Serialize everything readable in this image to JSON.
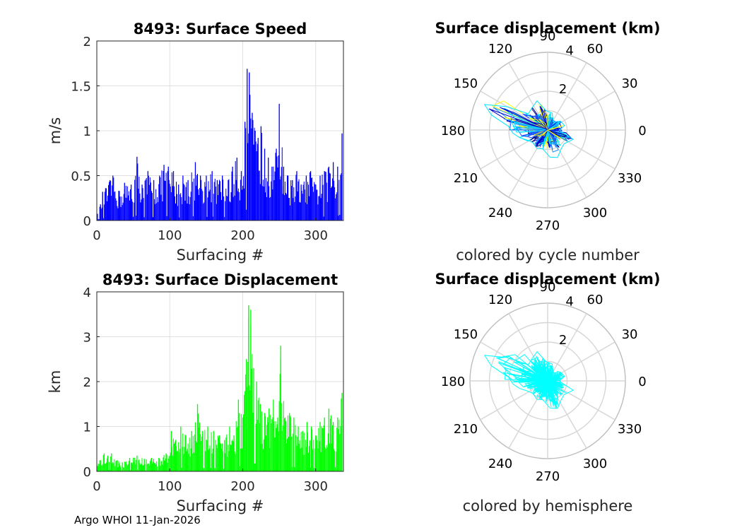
{
  "footer": "Argo WHOI 11-Jan-2026",
  "chart_data": [
    {
      "id": "speed",
      "type": "bar",
      "title": "8493: Surface Speed",
      "xlabel": "Surfacing #",
      "ylabel": "m/s",
      "xlim": [
        0,
        338
      ],
      "ylim": [
        0,
        2
      ],
      "xticks": [
        0,
        100,
        200,
        300
      ],
      "yticks": [
        0,
        0.5,
        1,
        1.5,
        2
      ],
      "ytick_labels": [
        "0",
        "0.5",
        "1",
        "1.5",
        "2"
      ],
      "grid": true,
      "color": "#0000ff",
      "peaks": [
        [
          5,
          0.18
        ],
        [
          8,
          0.32
        ],
        [
          12,
          0.36
        ],
        [
          18,
          0.45
        ],
        [
          22,
          0.5
        ],
        [
          30,
          0.33
        ],
        [
          38,
          0.42
        ],
        [
          47,
          0.4
        ],
        [
          55,
          0.71
        ],
        [
          62,
          0.4
        ],
        [
          70,
          0.55
        ],
        [
          78,
          0.45
        ],
        [
          86,
          0.5
        ],
        [
          92,
          0.62
        ],
        [
          98,
          0.6
        ],
        [
          105,
          0.55
        ],
        [
          112,
          0.4
        ],
        [
          118,
          0.5
        ],
        [
          125,
          0.45
        ],
        [
          135,
          0.65
        ],
        [
          142,
          0.5
        ],
        [
          150,
          0.5
        ],
        [
          158,
          0.55
        ],
        [
          165,
          0.45
        ],
        [
          172,
          0.5
        ],
        [
          180,
          0.45
        ],
        [
          186,
          0.6
        ],
        [
          192,
          0.7
        ],
        [
          198,
          0.55
        ],
        [
          203,
          1.1
        ],
        [
          206,
          1.69
        ],
        [
          209,
          1.65
        ],
        [
          213,
          1.2
        ],
        [
          217,
          1.0
        ],
        [
          221,
          0.92
        ],
        [
          225,
          1.05
        ],
        [
          230,
          0.8
        ],
        [
          235,
          0.7
        ],
        [
          240,
          0.6
        ],
        [
          246,
          0.8
        ],
        [
          250,
          1.3
        ],
        [
          256,
          0.6
        ],
        [
          262,
          0.5
        ],
        [
          268,
          0.45
        ],
        [
          274,
          0.55
        ],
        [
          280,
          0.4
        ],
        [
          287,
          0.5
        ],
        [
          293,
          0.55
        ],
        [
          300,
          0.4
        ],
        [
          306,
          0.5
        ],
        [
          312,
          0.55
        ],
        [
          318,
          0.6
        ],
        [
          324,
          0.65
        ],
        [
          330,
          0.6
        ],
        [
          336,
          0.97
        ]
      ]
    },
    {
      "id": "displacement",
      "type": "bar",
      "title": "8493: Surface Displacement",
      "xlabel": "Surfacing #",
      "ylabel": "km",
      "xlim": [
        0,
        338
      ],
      "ylim": [
        0,
        4
      ],
      "xticks": [
        0,
        100,
        200,
        300
      ],
      "yticks": [
        0,
        1,
        2,
        3,
        4
      ],
      "ytick_labels": [
        "0",
        "1",
        "2",
        "3",
        "4"
      ],
      "grid": true,
      "color": "#00ff00",
      "peaks": [
        [
          5,
          0.25
        ],
        [
          10,
          0.4
        ],
        [
          15,
          0.35
        ],
        [
          20,
          0.4
        ],
        [
          28,
          0.25
        ],
        [
          35,
          0.2
        ],
        [
          45,
          0.3
        ],
        [
          55,
          0.35
        ],
        [
          65,
          0.28
        ],
        [
          75,
          0.3
        ],
        [
          85,
          0.3
        ],
        [
          95,
          0.4
        ],
        [
          102,
          0.9
        ],
        [
          108,
          0.7
        ],
        [
          115,
          1.0
        ],
        [
          122,
          0.8
        ],
        [
          130,
          0.9
        ],
        [
          138,
          1.5
        ],
        [
          145,
          0.9
        ],
        [
          152,
          1.0
        ],
        [
          160,
          0.9
        ],
        [
          168,
          0.8
        ],
        [
          175,
          0.7
        ],
        [
          182,
          1.0
        ],
        [
          188,
          0.8
        ],
        [
          194,
          1.6
        ],
        [
          200,
          1.2
        ],
        [
          205,
          2.5
        ],
        [
          208,
          3.7
        ],
        [
          211,
          3.6
        ],
        [
          215,
          2.3
        ],
        [
          219,
          2.0
        ],
        [
          224,
          1.5
        ],
        [
          230,
          1.3
        ],
        [
          236,
          1.4
        ],
        [
          242,
          1.6
        ],
        [
          248,
          1.2
        ],
        [
          252,
          2.8
        ],
        [
          258,
          1.2
        ],
        [
          264,
          1.3
        ],
        [
          270,
          1.2
        ],
        [
          276,
          1.0
        ],
        [
          282,
          0.9
        ],
        [
          288,
          1.1
        ],
        [
          294,
          1.0
        ],
        [
          300,
          0.8
        ],
        [
          306,
          1.1
        ],
        [
          312,
          1.2
        ],
        [
          318,
          1.4
        ],
        [
          324,
          1.1
        ],
        [
          330,
          1.2
        ],
        [
          336,
          1.75
        ]
      ]
    },
    {
      "id": "polar-cycle",
      "type": "polar-line",
      "title": "Surface displacement (km)",
      "xlabel": "colored by cycle number",
      "rlim": [
        0,
        4
      ],
      "rticks": [
        2,
        4
      ],
      "theta_ticks": [
        0,
        30,
        60,
        90,
        120,
        150,
        180,
        210,
        240,
        270,
        300,
        330
      ],
      "colors": [
        "#00008b",
        "#0000cd",
        "#1e50ff",
        "#1e90ff",
        "#00e5ff",
        "#ffff00"
      ],
      "lobes": [
        [
          0,
          0.6
        ],
        [
          15,
          0.9
        ],
        [
          35,
          0.8
        ],
        [
          55,
          0.5
        ],
        [
          75,
          0.9
        ],
        [
          95,
          1.0
        ],
        [
          110,
          1.6
        ],
        [
          125,
          1.4
        ],
        [
          140,
          1.3
        ],
        [
          150,
          2.4
        ],
        [
          158,
          3.5
        ],
        [
          165,
          3.0
        ],
        [
          175,
          2.0
        ],
        [
          185,
          1.8
        ],
        [
          195,
          1.5
        ],
        [
          205,
          1.2
        ],
        [
          220,
          1.0
        ],
        [
          240,
          1.1
        ],
        [
          255,
          1.0
        ],
        [
          275,
          1.4
        ],
        [
          290,
          1.5
        ],
        [
          305,
          1.2
        ],
        [
          320,
          1.1
        ],
        [
          340,
          1.4
        ],
        [
          350,
          0.8
        ]
      ]
    },
    {
      "id": "polar-hemisphere",
      "type": "polar-line",
      "title": "Surface displacement (km)",
      "xlabel": "colored by hemisphere",
      "rlim": [
        0,
        4
      ],
      "rticks": [
        2,
        4
      ],
      "theta_ticks": [
        0,
        30,
        60,
        90,
        120,
        150,
        180,
        210,
        240,
        270,
        300,
        330
      ],
      "colors": [
        "#00ffff"
      ],
      "lobes": [
        [
          0,
          0.6
        ],
        [
          15,
          0.9
        ],
        [
          35,
          0.8
        ],
        [
          55,
          0.5
        ],
        [
          75,
          0.9
        ],
        [
          95,
          1.0
        ],
        [
          110,
          1.6
        ],
        [
          125,
          1.4
        ],
        [
          140,
          1.3
        ],
        [
          150,
          2.4
        ],
        [
          158,
          3.5
        ],
        [
          165,
          3.0
        ],
        [
          175,
          2.0
        ],
        [
          185,
          1.8
        ],
        [
          195,
          1.5
        ],
        [
          205,
          1.2
        ],
        [
          220,
          1.0
        ],
        [
          240,
          1.1
        ],
        [
          255,
          1.0
        ],
        [
          275,
          1.4
        ],
        [
          290,
          1.5
        ],
        [
          305,
          1.2
        ],
        [
          320,
          1.1
        ],
        [
          340,
          1.4
        ],
        [
          350,
          0.8
        ]
      ]
    }
  ]
}
